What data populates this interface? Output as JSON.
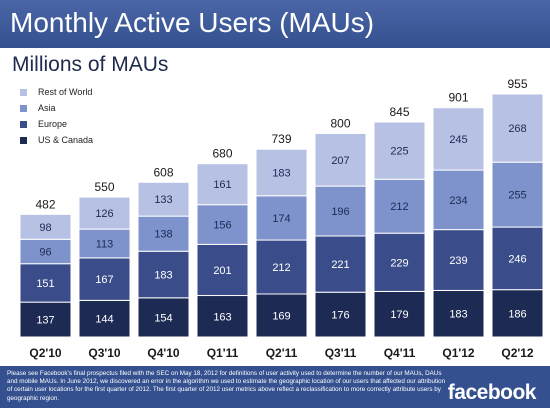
{
  "header": {
    "title": "Monthly Active Users (MAUs)"
  },
  "subtitle": "Millions of MAUs",
  "legend": [
    {
      "label": "Rest of World",
      "color": "#b7c1e3"
    },
    {
      "label": "Asia",
      "color": "#7e92cc"
    },
    {
      "label": "Europe",
      "color": "#3a4d8a"
    },
    {
      "label": "US & Canada",
      "color": "#1d2a54"
    }
  ],
  "chart_data": {
    "type": "bar",
    "stacked": true,
    "categories": [
      "Q2'10",
      "Q3'10",
      "Q4'10",
      "Q1'11",
      "Q2'11",
      "Q3'11",
      "Q4'11",
      "Q1'12",
      "Q2'12"
    ],
    "series": [
      {
        "name": "US & Canada",
        "color": "#1d2a54",
        "values": [
          137,
          144,
          154,
          163,
          169,
          176,
          179,
          183,
          186
        ]
      },
      {
        "name": "Europe",
        "color": "#3a4d8a",
        "values": [
          151,
          167,
          183,
          201,
          212,
          221,
          229,
          239,
          246
        ]
      },
      {
        "name": "Asia",
        "color": "#7e92cc",
        "values": [
          96,
          113,
          138,
          156,
          174,
          196,
          212,
          234,
          255
        ]
      },
      {
        "name": "Rest of World",
        "color": "#b7c1e3",
        "values": [
          98,
          126,
          133,
          161,
          183,
          207,
          225,
          245,
          268
        ]
      }
    ],
    "totals": [
      482,
      550,
      608,
      680,
      739,
      800,
      845,
      901,
      955
    ],
    "ylim": [
      0,
      955
    ],
    "xlabel": "",
    "ylabel": "",
    "grid": false,
    "legend_position": "top-left"
  },
  "footer": {
    "note": "Please see Facebook's final prospectus filed with the SEC on May 18, 2012 for definitions of user activity used to determine the number of our MAUs, DAUs and mobile MAUs. In June 2012, we discovered an error in the algorithm we used to estimate the geographic location of our users that affected our attribution of certain user locations for the first quarter of 2012. The first quarter of 2012 user metrics above reflect a reclassification to more correctly attribute users by geographic region.",
    "logo": "facebook"
  }
}
